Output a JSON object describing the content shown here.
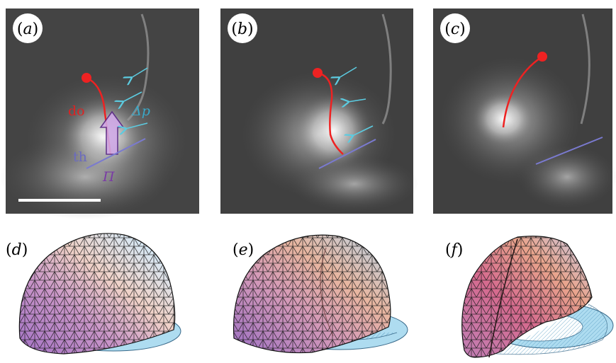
{
  "figure": {
    "panels": [
      {
        "id": "a",
        "label_open": "(",
        "label_letter": "a",
        "label_close": ")",
        "kind": "micrograph"
      },
      {
        "id": "b",
        "label_open": "(",
        "label_letter": "b",
        "label_close": ")",
        "kind": "micrograph"
      },
      {
        "id": "c",
        "label_open": "(",
        "label_letter": "c",
        "label_close": ")",
        "kind": "micrograph"
      },
      {
        "id": "d",
        "label_open": "(",
        "label_letter": "d",
        "label_close": ")",
        "kind": "mesh"
      },
      {
        "id": "e",
        "label_open": "(",
        "label_letter": "e",
        "label_close": ")",
        "kind": "mesh"
      },
      {
        "id": "f",
        "label_open": "(",
        "label_letter": "f",
        "label_close": ")",
        "kind": "mesh"
      }
    ],
    "annotations": {
      "do": "do",
      "delta_p": "Δp",
      "th": "th",
      "pi": "Π"
    },
    "colors": {
      "contour": "#ee2222",
      "arrow_cyan": "#5ccbe0",
      "line_blue": "#7a7ad0",
      "label_do": "#dd2222",
      "label_deltap": "#3aa8c8",
      "label_th": "#6b6bc0",
      "label_pi": "#7a3aa6",
      "disc_fill": "#aedcf0"
    }
  }
}
